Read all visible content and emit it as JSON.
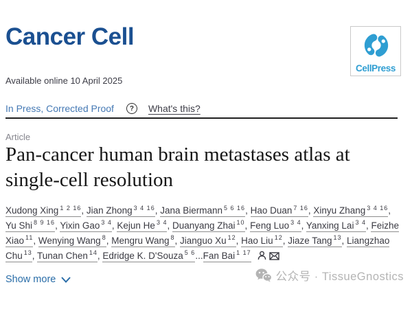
{
  "journal": {
    "name": "Cancer Cell"
  },
  "publisher": {
    "logo_text": "CellPress",
    "logo_color": "#2f9ed2"
  },
  "meta": {
    "available_online": "Available online 10 April 2025"
  },
  "status": {
    "label": "In Press, Corrected Proof",
    "help_icon": "?",
    "help_link": "What's this?"
  },
  "article": {
    "type_label": "Article",
    "title": "Pan-cancer human brain metastases atlas at single-cell resolution"
  },
  "authors": {
    "list": [
      {
        "name": "Xudong Xing",
        "sup": "1 2 16"
      },
      {
        "name": "Jian Zhong",
        "sup": "3 4 16"
      },
      {
        "name": "Jana Biermann",
        "sup": "5 6 16"
      },
      {
        "name": "Hao Duan",
        "sup": "7 16"
      },
      {
        "name": "Xinyu Zhang",
        "sup": "3 4 16"
      },
      {
        "name": "Yu Shi",
        "sup": "8 9 16"
      },
      {
        "name": "Yixin Gao",
        "sup": "3 4"
      },
      {
        "name": "Kejun He",
        "sup": "3 4"
      },
      {
        "name": "Duanyang Zhai",
        "sup": "10"
      },
      {
        "name": "Feng Luo",
        "sup": "3 4"
      },
      {
        "name": "Yanxing Lai",
        "sup": "3 4"
      },
      {
        "name": "Feizhe Xiao",
        "sup": "11"
      },
      {
        "name": "Wenying Wang",
        "sup": "8"
      },
      {
        "name": "Mengru Wang",
        "sup": "8"
      },
      {
        "name": "Jianguo Xu",
        "sup": "12"
      },
      {
        "name": "Hao Liu",
        "sup": "12"
      },
      {
        "name": "Jiaze Tang",
        "sup": "13"
      },
      {
        "name": "Liangzhao Chu",
        "sup": "13"
      },
      {
        "name": "Tunan Chen",
        "sup": "14"
      },
      {
        "name": "Edridge K. D'Souza",
        "sup": "5 6"
      },
      {
        "name": "Fan Bai",
        "sup": "1 17"
      }
    ],
    "separator": ", ",
    "ellipsis": "...",
    "corresponding_icons": [
      "person-icon",
      "envelope-icon"
    ]
  },
  "actions": {
    "show_more": "Show more"
  },
  "watermark": {
    "text": "公众号 · TissueGnostics",
    "icon": "wechat-icon"
  },
  "colors": {
    "journal_navy": "#1b5091",
    "cellpress_blue": "#2f9ed2",
    "status_blue": "#4579b4",
    "show_more_blue": "#2a6da8",
    "text_dark": "#3a3a42",
    "label_gray": "#85858d",
    "watermark_gray": "#b4b4b4"
  }
}
